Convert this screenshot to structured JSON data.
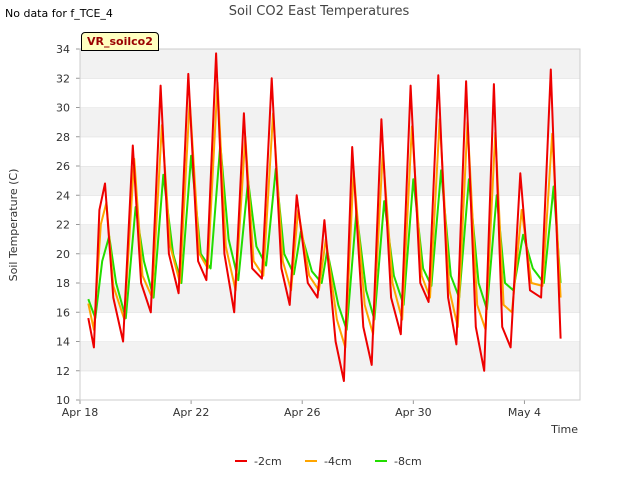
{
  "header": {
    "no_data_note": "No data for f_TCE_4",
    "site_badge": "VR_soilco2"
  },
  "chart_data": {
    "type": "line",
    "title": "Soil CO2 East Temperatures",
    "xlabel": "Time",
    "ylabel": "Soil Temperature (C)",
    "ylim": [
      10,
      34
    ],
    "yticks": [
      10,
      12,
      14,
      16,
      18,
      20,
      22,
      24,
      26,
      28,
      30,
      32,
      34
    ],
    "xlim": [
      0,
      18
    ],
    "xticks": [
      {
        "x": 0,
        "label": "Apr 18"
      },
      {
        "x": 4,
        "label": "Apr 22"
      },
      {
        "x": 8,
        "label": "Apr 26"
      },
      {
        "x": 12,
        "label": "Apr 30"
      },
      {
        "x": 16,
        "label": "May 4"
      }
    ],
    "grid": "horizontal bands",
    "legend_position": "bottom",
    "series": [
      {
        "name": "-2cm",
        "color": "#ee0000",
        "points": [
          [
            0.3,
            15.6
          ],
          [
            0.5,
            13.6
          ],
          [
            0.7,
            23.0
          ],
          [
            0.9,
            24.8
          ],
          [
            1.2,
            17.0
          ],
          [
            1.55,
            14.0
          ],
          [
            1.9,
            27.4
          ],
          [
            2.2,
            18.0
          ],
          [
            2.55,
            16.0
          ],
          [
            2.9,
            31.5
          ],
          [
            3.2,
            20.0
          ],
          [
            3.55,
            17.3
          ],
          [
            3.9,
            32.3
          ],
          [
            4.25,
            19.5
          ],
          [
            4.55,
            18.2
          ],
          [
            4.9,
            33.7
          ],
          [
            5.2,
            20.0
          ],
          [
            5.55,
            16.0
          ],
          [
            5.9,
            29.6
          ],
          [
            6.2,
            19.0
          ],
          [
            6.55,
            18.3
          ],
          [
            6.9,
            32.0
          ],
          [
            7.25,
            19.0
          ],
          [
            7.55,
            16.5
          ],
          [
            7.8,
            24.0
          ],
          [
            8.2,
            18.0
          ],
          [
            8.55,
            17.0
          ],
          [
            8.8,
            22.3
          ],
          [
            9.2,
            14.0
          ],
          [
            9.5,
            11.3
          ],
          [
            9.8,
            27.3
          ],
          [
            10.2,
            15.0
          ],
          [
            10.5,
            12.4
          ],
          [
            10.85,
            29.2
          ],
          [
            11.2,
            17.0
          ],
          [
            11.55,
            14.5
          ],
          [
            11.9,
            31.5
          ],
          [
            12.25,
            18.0
          ],
          [
            12.55,
            16.7
          ],
          [
            12.9,
            32.2
          ],
          [
            13.25,
            17.0
          ],
          [
            13.55,
            13.8
          ],
          [
            13.9,
            31.8
          ],
          [
            14.25,
            15.0
          ],
          [
            14.55,
            12.0
          ],
          [
            14.9,
            31.6
          ],
          [
            15.2,
            15.0
          ],
          [
            15.5,
            13.6
          ],
          [
            15.85,
            25.5
          ],
          [
            16.2,
            17.5
          ],
          [
            16.6,
            17.0
          ],
          [
            16.95,
            32.6
          ],
          [
            17.3,
            14.2
          ]
        ]
      },
      {
        "name": "-4cm",
        "color": "#ffa500",
        "points": [
          [
            0.3,
            16.6
          ],
          [
            0.5,
            14.8
          ],
          [
            0.75,
            22.0
          ],
          [
            0.95,
            23.5
          ],
          [
            1.2,
            17.8
          ],
          [
            1.6,
            15.5
          ],
          [
            1.95,
            26.5
          ],
          [
            2.25,
            18.5
          ],
          [
            2.6,
            17.0
          ],
          [
            2.95,
            28.8
          ],
          [
            3.25,
            20.5
          ],
          [
            3.6,
            18.0
          ],
          [
            3.95,
            30.5
          ],
          [
            4.3,
            20.0
          ],
          [
            4.6,
            19.0
          ],
          [
            4.95,
            31.7
          ],
          [
            5.25,
            20.5
          ],
          [
            5.6,
            17.5
          ],
          [
            5.95,
            28.0
          ],
          [
            6.25,
            19.5
          ],
          [
            6.6,
            18.5
          ],
          [
            6.95,
            29.6
          ],
          [
            7.3,
            19.5
          ],
          [
            7.6,
            17.5
          ],
          [
            7.85,
            23.0
          ],
          [
            8.25,
            18.5
          ],
          [
            8.6,
            17.5
          ],
          [
            8.85,
            21.0
          ],
          [
            9.25,
            15.5
          ],
          [
            9.55,
            13.6
          ],
          [
            9.85,
            25.7
          ],
          [
            10.25,
            16.5
          ],
          [
            10.55,
            14.5
          ],
          [
            10.9,
            27.0
          ],
          [
            11.25,
            18.0
          ],
          [
            11.6,
            15.5
          ],
          [
            11.95,
            28.7
          ],
          [
            12.3,
            18.5
          ],
          [
            12.6,
            17.0
          ],
          [
            12.95,
            29.2
          ],
          [
            13.3,
            17.5
          ],
          [
            13.6,
            15.0
          ],
          [
            13.95,
            29.0
          ],
          [
            14.3,
            16.5
          ],
          [
            14.6,
            14.8
          ],
          [
            14.95,
            28.3
          ],
          [
            15.25,
            16.5
          ],
          [
            15.55,
            16.0
          ],
          [
            15.9,
            23.0
          ],
          [
            16.25,
            18.0
          ],
          [
            16.65,
            17.8
          ],
          [
            17.0,
            28.2
          ],
          [
            17.3,
            17.0
          ]
        ]
      },
      {
        "name": "-8cm",
        "color": "#22dd00",
        "points": [
          [
            0.3,
            16.9
          ],
          [
            0.55,
            15.6
          ],
          [
            0.8,
            19.5
          ],
          [
            1.05,
            21.2
          ],
          [
            1.3,
            18.0
          ],
          [
            1.65,
            15.6
          ],
          [
            2.0,
            23.2
          ],
          [
            2.3,
            19.5
          ],
          [
            2.65,
            17.0
          ],
          [
            3.0,
            25.4
          ],
          [
            3.35,
            20.0
          ],
          [
            3.65,
            18.0
          ],
          [
            4.0,
            26.7
          ],
          [
            4.35,
            20.0
          ],
          [
            4.7,
            19.0
          ],
          [
            5.05,
            27.5
          ],
          [
            5.35,
            21.0
          ],
          [
            5.7,
            18.2
          ],
          [
            6.05,
            25.0
          ],
          [
            6.35,
            20.5
          ],
          [
            6.7,
            19.2
          ],
          [
            7.05,
            25.8
          ],
          [
            7.35,
            20.0
          ],
          [
            7.7,
            18.6
          ],
          [
            7.95,
            21.5
          ],
          [
            8.35,
            18.8
          ],
          [
            8.7,
            18.0
          ],
          [
            8.9,
            20.2
          ],
          [
            9.3,
            16.5
          ],
          [
            9.6,
            14.8
          ],
          [
            9.95,
            22.9
          ],
          [
            10.3,
            17.5
          ],
          [
            10.6,
            15.5
          ],
          [
            10.95,
            23.6
          ],
          [
            11.3,
            18.5
          ],
          [
            11.65,
            16.5
          ],
          [
            12.0,
            25.1
          ],
          [
            12.35,
            19.0
          ],
          [
            12.65,
            17.8
          ],
          [
            13.0,
            25.7
          ],
          [
            13.35,
            18.5
          ],
          [
            13.65,
            17.0
          ],
          [
            14.0,
            25.1
          ],
          [
            14.35,
            18.0
          ],
          [
            14.65,
            16.2
          ],
          [
            15.0,
            24.0
          ],
          [
            15.3,
            18.0
          ],
          [
            15.6,
            17.5
          ],
          [
            15.95,
            21.3
          ],
          [
            16.3,
            19.0
          ],
          [
            16.7,
            18.0
          ],
          [
            17.05,
            24.6
          ],
          [
            17.3,
            18.0
          ]
        ]
      }
    ]
  }
}
